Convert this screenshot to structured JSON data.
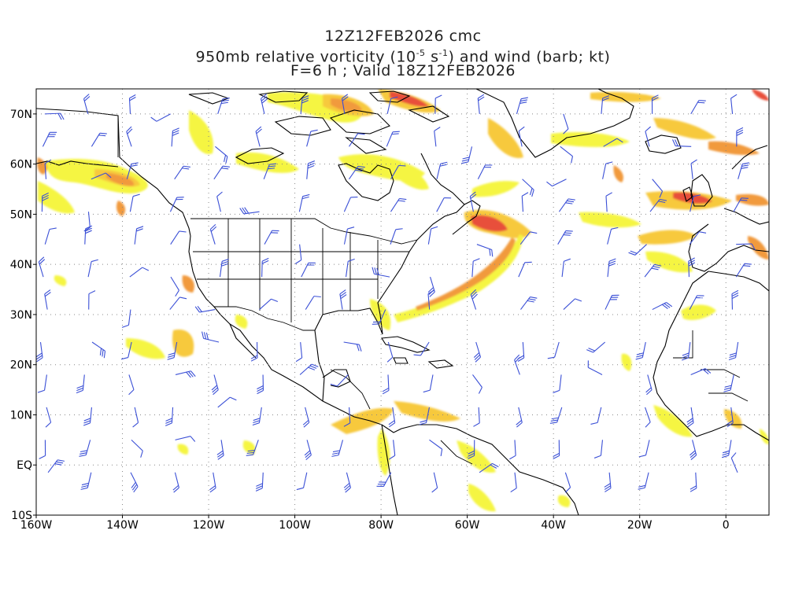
{
  "title": {
    "line1": "12Z12FEB2026 cmc",
    "line2_main": "950mb relative vorticity (10",
    "line2_exp1": "-5",
    "line2_mid": " s",
    "line2_exp2": "-1",
    "line2_end": ") and wind (barb; kt)",
    "line3": "F=6 h ; Valid 18Z12FEB2026"
  },
  "map": {
    "projection": "lat-lon",
    "lon_range": [
      -160,
      10
    ],
    "lat_range": [
      -10,
      75
    ],
    "grid": "dotted",
    "lat_labels": [
      "70N",
      "60N",
      "50N",
      "40N",
      "30N",
      "20N",
      "10N",
      "EQ",
      "10S"
    ],
    "lat_values": [
      70,
      60,
      50,
      40,
      30,
      20,
      10,
      0,
      -10
    ],
    "lon_labels": [
      "160W",
      "140W",
      "120W",
      "100W",
      "80W",
      "60W",
      "40W",
      "20W",
      "0"
    ],
    "lon_values": [
      -160,
      -140,
      -120,
      -100,
      -80,
      -60,
      -40,
      -20,
      0
    ],
    "shading_colors": [
      "#f5f542",
      "#f7c93e",
      "#f19a3c",
      "#e8503a"
    ],
    "barb_color": "#3a4fd6",
    "coast_color": "#000000"
  }
}
